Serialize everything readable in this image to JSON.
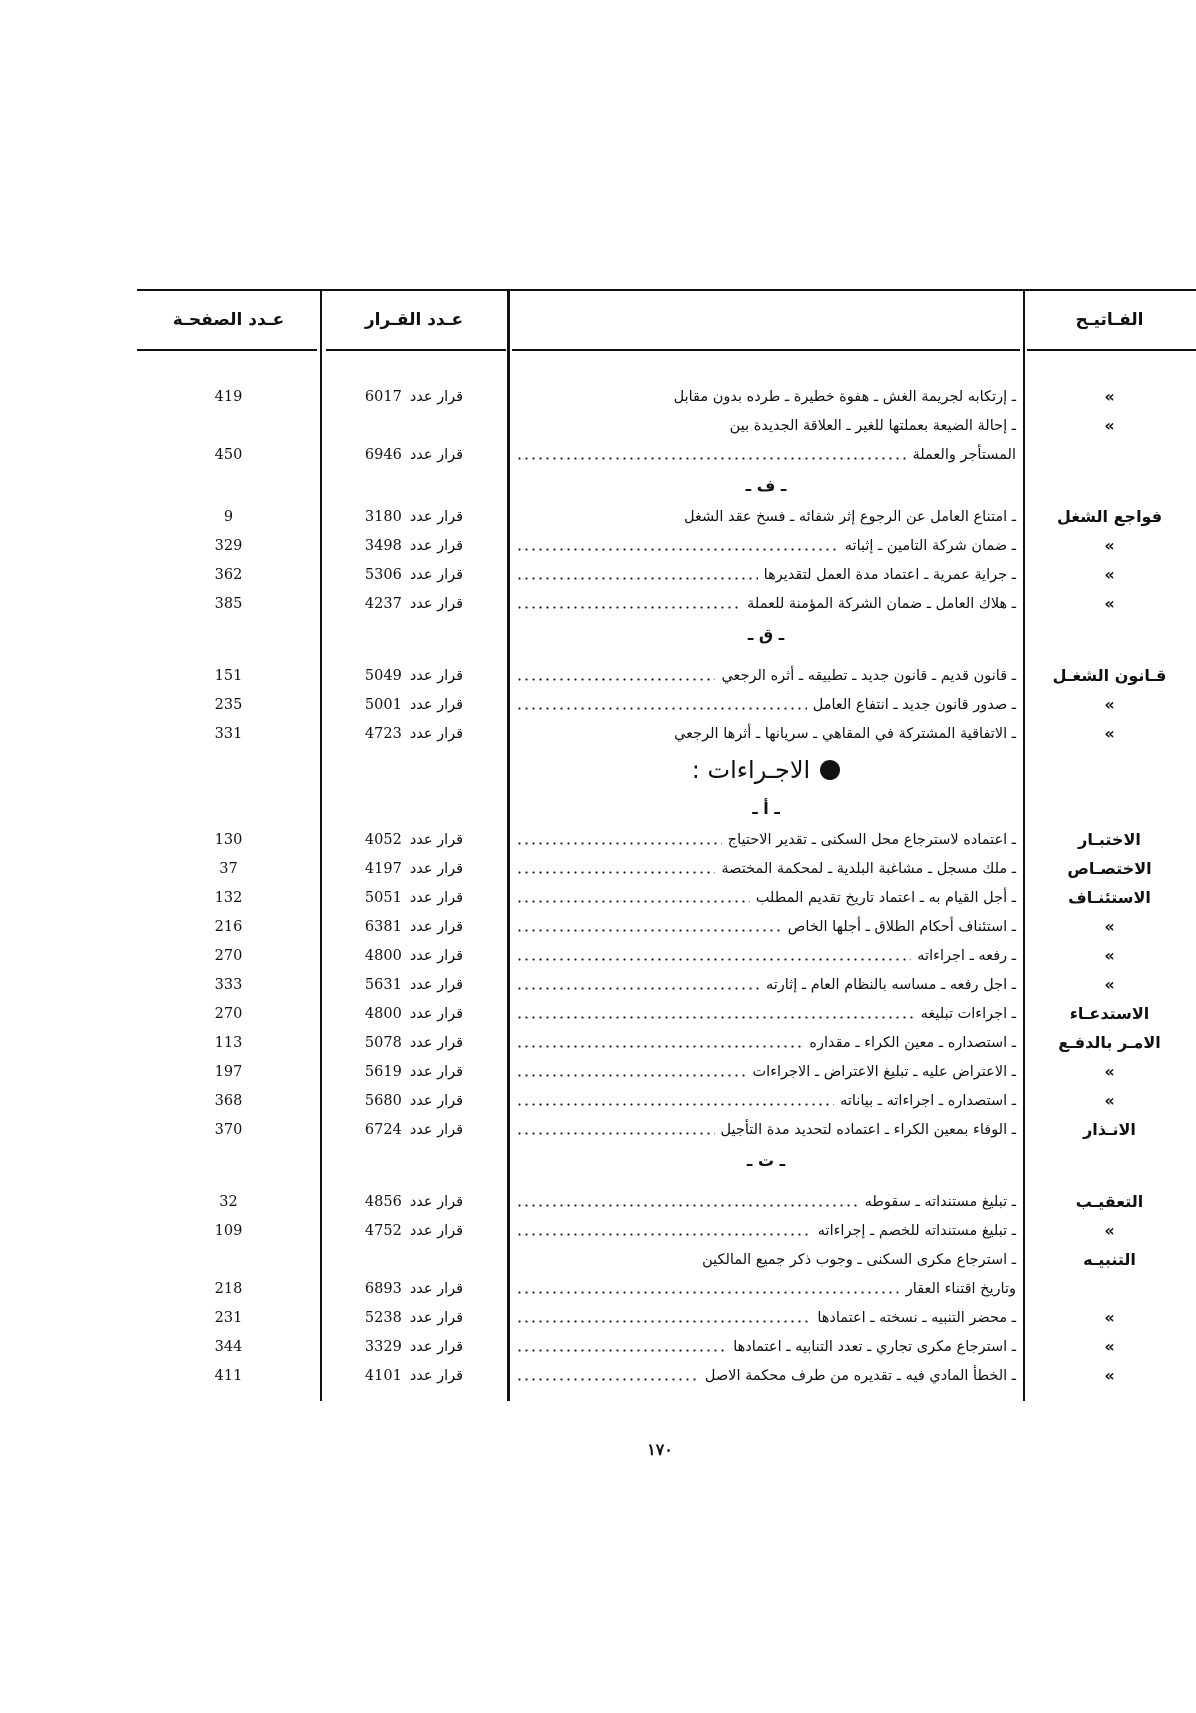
{
  "header": {
    "keywords": "الفـاتيـح",
    "description": "",
    "decision_number": "عـدد القـرار",
    "page_number": "عـدد الصفحـة"
  },
  "decision_label": "قرار عدد",
  "rows": [
    {
      "type": "entry",
      "keyword": "»",
      "text": "ـ إرتكابه لجريمة الغش ـ هفوة خطيرة ـ طرده بدون مقابل",
      "decision": "6017",
      "page": "419"
    },
    {
      "type": "entry",
      "keyword": "»",
      "text": "ـ إحالة الضيعة بعملتها للغير ـ العلاقة الجديدة بين",
      "decision": "",
      "page": ""
    },
    {
      "type": "cont",
      "keyword": "",
      "text": "المستأجر والعملة",
      "decision": "6946",
      "page": "450",
      "dots": true
    },
    {
      "type": "section",
      "text": "ـ ف ـ"
    },
    {
      "type": "entry",
      "keyword": "فواجع الشغل",
      "text": "ـ امتناع العامل عن الرجوع إثر شفائه ـ فسخ عقد الشغل",
      "decision": "3180",
      "page": "9"
    },
    {
      "type": "entry",
      "keyword": "»",
      "text": "ـ ضمان شركة التامين ـ إثباته",
      "decision": "3498",
      "page": "329",
      "dots": true
    },
    {
      "type": "entry",
      "keyword": "»",
      "text": "ـ جراية عمرية ـ اعتماد مدة العمل لتقديرها",
      "decision": "5306",
      "page": "362",
      "dots": true
    },
    {
      "type": "entry",
      "keyword": "»",
      "text": "ـ هلاك العامل ـ ضمان الشركة المؤمنة للعملة",
      "decision": "4237",
      "page": "385",
      "dots": true
    },
    {
      "type": "section",
      "text": "ـ ق ـ"
    },
    {
      "type": "gap"
    },
    {
      "type": "entry",
      "keyword": "قـانون الشغـل",
      "text": "ـ قانون قديم ـ قانون جديد ـ تطبيقه ـ أثره الرجعي",
      "decision": "5049",
      "page": "151",
      "dots": true
    },
    {
      "type": "entry",
      "keyword": "»",
      "text": "ـ صدور قانون جديد ـ انتفاع العامل",
      "decision": "5001",
      "page": "235",
      "dots": true
    },
    {
      "type": "entry",
      "keyword": "»",
      "text": "ـ الاتفاقية المشتركة في المقاهي ـ سريانها ـ أثرها الرجعي",
      "decision": "4723",
      "page": "331"
    },
    {
      "type": "heading",
      "text": "الاجـراءات :"
    },
    {
      "type": "section",
      "text": "ـ أ ـ"
    },
    {
      "type": "entry",
      "keyword": "الاختبـار",
      "text": "ـ اعتماده لاسترجاع محل السكنى ـ تقدير الاحتياج",
      "decision": "4052",
      "page": "130",
      "dots": true
    },
    {
      "type": "entry",
      "keyword": "الاختصـاص",
      "text": "ـ ملك مسجل ـ مشاغبة البلدية ـ لمحكمة المختصة",
      "decision": "4197",
      "page": "37",
      "dots": true
    },
    {
      "type": "entry",
      "keyword": "الاستئنـاف",
      "text": "ـ أجل القيام به ـ اعتماد تاريخ تقديم المطلب",
      "decision": "5051",
      "page": "132",
      "dots": true
    },
    {
      "type": "entry",
      "keyword": "»",
      "text": "ـ استئناف أحكام الطلاق ـ أجلها الخاص",
      "decision": "6381",
      "page": "216",
      "dots": true
    },
    {
      "type": "entry",
      "keyword": "»",
      "text": "ـ رفعه ـ اجراءاته",
      "decision": "4800",
      "page": "270",
      "dots": true
    },
    {
      "type": "entry",
      "keyword": "»",
      "text": "ـ اجل رفعه ـ مساسه بالنظام العام ـ إثارته",
      "decision": "5631",
      "page": "333",
      "dots": true
    },
    {
      "type": "entry",
      "keyword": "الاستدعـاء",
      "text": "ـ اجراءات تبليغه",
      "decision": "4800",
      "page": "270",
      "dots": true
    },
    {
      "type": "entry",
      "keyword": "الامـر بالدفـع",
      "text": "ـ استصداره ـ معين الكراء ـ مقداره",
      "decision": "5078",
      "page": "113",
      "dots": true
    },
    {
      "type": "entry",
      "keyword": "»",
      "text": "ـ الاعتراض عليه ـ تبليغ الاعتراض ـ الاجراءات",
      "decision": "5619",
      "page": "197",
      "dots": true
    },
    {
      "type": "entry",
      "keyword": "»",
      "text": "ـ استصداره ـ اجراءاته ـ بياناته",
      "decision": "5680",
      "page": "368",
      "dots": true
    },
    {
      "type": "entry",
      "keyword": "الانـذار",
      "text": "ـ الوفاء بمعين الكراء ـ اعتماده لتحديد مدة التأجيل",
      "decision": "6724",
      "page": "370",
      "dots": true
    },
    {
      "type": "section",
      "text": "ـ ت ـ"
    },
    {
      "type": "gap"
    },
    {
      "type": "entry",
      "keyword": "التعقيـب",
      "text": "ـ تبليغ مستنداته ـ سقوطه",
      "decision": "4856",
      "page": "32",
      "dots": true
    },
    {
      "type": "entry",
      "keyword": "»",
      "text": "ـ تبليغ مستنداته للخصم ـ إجراءاته",
      "decision": "4752",
      "page": "109",
      "dots": true
    },
    {
      "type": "entry",
      "keyword": "التنبيـه",
      "text": "ـ استرجاع مكرى السكنى ـ وجوب ذكر جميع المالكين",
      "decision": "",
      "page": ""
    },
    {
      "type": "cont",
      "keyword": "",
      "text": "وتاريخ اقتناء العقار",
      "decision": "6893",
      "page": "218",
      "dots": true
    },
    {
      "type": "entry",
      "keyword": "»",
      "text": "ـ محضر التنبيه ـ نسخته ـ اعتمادها",
      "decision": "5238",
      "page": "231",
      "dots": true
    },
    {
      "type": "entry",
      "keyword": "»",
      "text": "ـ استرجاع مكرى تجاري ـ تعدد التنابيه ـ اعتمادها",
      "decision": "3329",
      "page": "344",
      "dots": true
    },
    {
      "type": "entry",
      "keyword": "»",
      "text": "ـ الخطأ المادي فيه ـ تقديره من طرف محكمة الاصل",
      "decision": "4101",
      "page": "411",
      "dots": true
    }
  ],
  "page_number": "١٧٠"
}
